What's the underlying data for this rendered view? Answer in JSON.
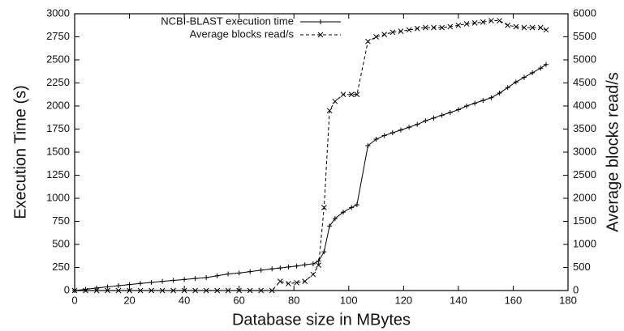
{
  "chart_data": {
    "type": "line",
    "x_label": "Database size in MBytes",
    "y_label": "Execution Time (s)",
    "y2_label": "Average blocks read/s",
    "x": [
      0,
      4,
      8,
      12,
      16,
      20,
      24,
      28,
      32,
      36,
      40,
      44,
      48,
      52,
      56,
      60,
      64,
      68,
      72,
      75,
      78,
      81,
      84,
      87,
      89,
      91,
      93,
      95,
      98,
      101,
      103,
      107,
      110,
      113,
      116,
      119,
      122,
      125,
      128,
      131,
      134,
      137,
      140,
      143,
      146,
      149,
      152,
      155,
      158,
      161,
      164,
      167,
      170,
      172
    ],
    "series": [
      {
        "name": "NCBI-BLAST execution time",
        "color": "#000000",
        "marker": "+",
        "values": [
          0,
          13,
          27,
          40,
          53,
          65,
          77,
          88,
          100,
          110,
          120,
          130,
          140,
          160,
          180,
          190,
          205,
          220,
          235,
          245,
          255,
          265,
          280,
          290,
          320,
          420,
          700,
          780,
          850,
          900,
          930,
          1570,
          1640,
          1680,
          1710,
          1740,
          1770,
          1800,
          1840,
          1870,
          1900,
          1930,
          1960,
          2000,
          2030,
          2060,
          2090,
          2140,
          2200,
          2260,
          2310,
          2360,
          2410,
          2450
        ]
      },
      {
        "name": "Average blocks read/s",
        "color": "#000000",
        "marker": "x",
        "dashed": true,
        "axis": "y2",
        "values": [
          0,
          0,
          0,
          0,
          0,
          0,
          0,
          0,
          0,
          0,
          0,
          0,
          0,
          0,
          0,
          0,
          0,
          0,
          0,
          200,
          150,
          170,
          200,
          350,
          550,
          1800,
          3900,
          4100,
          4250,
          4250,
          4250,
          5400,
          5500,
          5550,
          5600,
          5620,
          5650,
          5680,
          5700,
          5700,
          5700,
          5720,
          5750,
          5780,
          5800,
          5820,
          5850,
          5850,
          5750,
          5720,
          5700,
          5700,
          5700,
          5650
        ]
      }
    ],
    "xlim": [
      0,
      180
    ],
    "xticks": [
      0,
      20,
      40,
      60,
      80,
      100,
      120,
      140,
      160,
      180
    ],
    "ylim": [
      0,
      3000
    ],
    "yticks": [
      0,
      250,
      500,
      750,
      1000,
      1250,
      1500,
      1750,
      2000,
      2250,
      2500,
      2750,
      3000
    ],
    "y2lim": [
      0,
      6000
    ],
    "y2ticks": [
      0,
      500,
      1000,
      1500,
      2000,
      2500,
      3000,
      3500,
      4000,
      4500,
      5000,
      5500,
      6000
    ],
    "legend": "top-left"
  }
}
